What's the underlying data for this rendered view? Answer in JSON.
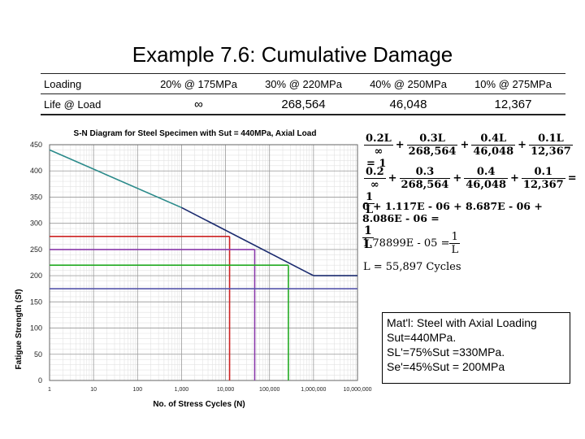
{
  "title": "Example 7.6: Cumulative Damage",
  "table": {
    "row1_label": "Loading",
    "row2_label": "Life @ Load",
    "loadings": [
      "20% @ 175MPa",
      "30% @ 220MPa",
      "40% @ 250MPa",
      "10% @ 275MPa"
    ],
    "lives": [
      "∞",
      "268,564",
      "46,048",
      "12,367"
    ]
  },
  "chart_data": {
    "type": "line",
    "title": "S-N Diagram for Steel Specimen with Sut = 440MPa, Axial Load",
    "xlabel": "No. of Stress Cycles  (N)",
    "ylabel": "Fatigue Strength  (Sf)",
    "x_scale": "log",
    "xlim": [
      1,
      10000000
    ],
    "ylim": [
      0,
      450
    ],
    "x_ticks": [
      "1",
      "10",
      "100",
      "1,000",
      "10,000",
      "100,000",
      "1,000,000",
      "10,000,000"
    ],
    "y_ticks": [
      "0",
      "50",
      "100",
      "150",
      "200",
      "250",
      "300",
      "350",
      "400",
      "450"
    ],
    "grid": true,
    "series": [
      {
        "values_x": [
          1,
          1000
        ],
        "values_y": [
          440,
          330
        ],
        "color": "#2a8a8a"
      },
      {
        "values_x": [
          1000,
          1000000
        ],
        "values_y": [
          330,
          200
        ],
        "color": "#1a2a6e"
      },
      {
        "values_x": [
          1000000,
          10000000
        ],
        "values_y": [
          200,
          200
        ],
        "color": "#1a2a6e"
      }
    ],
    "reference_lines": [
      {
        "stress": 275,
        "cycles": 12367,
        "color": "#cc2222"
      },
      {
        "stress": 250,
        "cycles": 46048,
        "color": "#8a3aaa"
      },
      {
        "stress": 220,
        "cycles": 268564,
        "color": "#22aa22"
      },
      {
        "stress": 175,
        "cycles": null,
        "color": "#5555aa"
      }
    ]
  },
  "equations": {
    "eq1": {
      "n": [
        "0.2L",
        "0.3L",
        "0.4L",
        "0.1L"
      ],
      "d": [
        "∞",
        "268,564",
        "46,048",
        "12,367"
      ],
      "plus": "+",
      "rhs": "= 1"
    },
    "eq2": {
      "n": [
        "0.2",
        "0.3",
        "0.4",
        "0.1"
      ],
      "d": [
        "∞",
        "268,564",
        "46,048",
        "12,367"
      ],
      "plus": "+",
      "eq": "=",
      "rhs_n": "1",
      "rhs_d": "L"
    },
    "eq3": {
      "lhs": "0 + 1.117E - 06 + 8.687E - 06 + 8.086E - 06 =",
      "rhs_n": "1",
      "rhs_d": "L"
    },
    "eq4": {
      "lhs": "1.78899E - 05 =",
      "rhs_n": "1",
      "rhs_d": "L"
    },
    "eq5": "L = 55,897  Cycles"
  },
  "note": {
    "lines": [
      "Mat'l: Steel with Axial Loading",
      "Sut=440MPa.",
      "SL'=75%Sut =330MPa.",
      "Se'=45%Sut = 200MPa"
    ]
  }
}
